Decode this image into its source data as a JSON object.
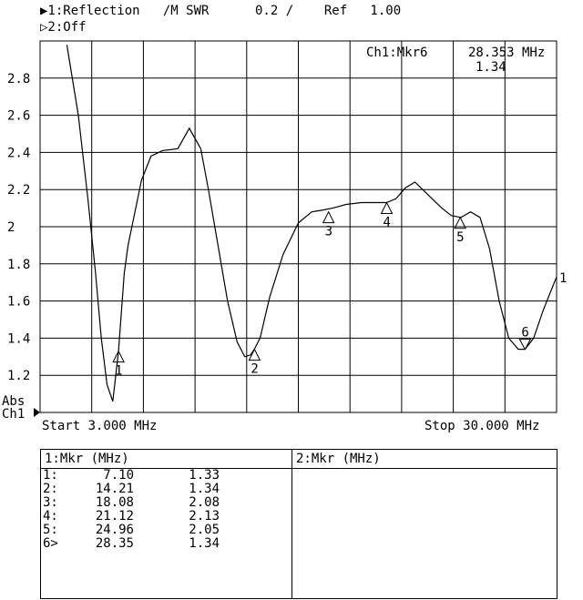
{
  "header": {
    "line1": "▶1:Reflection   /M SWR      0.2 /    Ref   1.00",
    "line2": "▷2:Off",
    "active_marker": "Ch1:Mkr6",
    "active_marker_freq": "28.353 MHz",
    "active_marker_value": "1.34"
  },
  "footer": {
    "start": "Start 3.000 MHz",
    "stop": "Stop 30.000 MHz",
    "abs_label": "Abs",
    "ch_label": "Ch1",
    "trace_label": "1"
  },
  "chart_data": {
    "type": "line",
    "title": "",
    "xlabel": "",
    "ylabel": "",
    "xlim": [
      3.0,
      30.0
    ],
    "ylim": [
      1.0,
      3.0
    ],
    "grid": true,
    "y_ticks": [
      "1.2",
      "1.4",
      "1.6",
      "1.8",
      "2",
      "2.2",
      "2.4",
      "2.6",
      "2.8"
    ],
    "series": [
      {
        "name": "1",
        "x": [
          4.4,
          5.0,
          5.5,
          5.9,
          6.2,
          6.5,
          6.8,
          7.1,
          7.4,
          7.6,
          7.9,
          8.3,
          8.8,
          9.4,
          10.2,
          10.8,
          11.4,
          11.8,
          12.3,
          12.8,
          13.3,
          13.7,
          14.0,
          14.2,
          14.5,
          15.0,
          15.7,
          16.5,
          17.2,
          17.8,
          18.3,
          19.0,
          19.8,
          20.5,
          21.1,
          21.6,
          22.1,
          22.6,
          23.0,
          23.5,
          24.0,
          24.5,
          25.0,
          25.5,
          26.0,
          26.5,
          27.0,
          27.5,
          28.0,
          28.35,
          28.8,
          29.3,
          30.0
        ],
        "values": [
          2.98,
          2.6,
          2.15,
          1.75,
          1.4,
          1.15,
          1.06,
          1.33,
          1.75,
          1.9,
          2.05,
          2.25,
          2.38,
          2.41,
          2.42,
          2.53,
          2.42,
          2.2,
          1.9,
          1.6,
          1.38,
          1.3,
          1.31,
          1.34,
          1.4,
          1.62,
          1.85,
          2.02,
          2.08,
          2.09,
          2.1,
          2.12,
          2.13,
          2.13,
          2.13,
          2.15,
          2.21,
          2.24,
          2.2,
          2.15,
          2.1,
          2.06,
          2.05,
          2.08,
          2.05,
          1.88,
          1.6,
          1.4,
          1.34,
          1.34,
          1.4,
          1.55,
          1.73
        ]
      }
    ],
    "markers": [
      {
        "label": "1",
        "x": 7.1,
        "y": 1.33
      },
      {
        "label": "2",
        "x": 14.21,
        "y": 1.34
      },
      {
        "label": "3",
        "x": 18.08,
        "y": 2.08
      },
      {
        "label": "4",
        "x": 21.12,
        "y": 2.13
      },
      {
        "label": "5",
        "x": 24.96,
        "y": 2.05
      },
      {
        "label": "6",
        "x": 28.35,
        "y": 1.34
      }
    ]
  },
  "marker_table": {
    "left_header": "1:Mkr (MHz)",
    "right_header": "2:Mkr (MHz)",
    "rows": [
      {
        "id": "1:",
        "freq": "7.10",
        "value": "1.33"
      },
      {
        "id": "2:",
        "freq": "14.21",
        "value": "1.34"
      },
      {
        "id": "3:",
        "freq": "18.08",
        "value": "2.08"
      },
      {
        "id": "4:",
        "freq": "21.12",
        "value": "2.13"
      },
      {
        "id": "5:",
        "freq": "24.96",
        "value": "2.05"
      },
      {
        "id": "6>",
        "freq": "28.35",
        "value": "1.34"
      }
    ]
  }
}
